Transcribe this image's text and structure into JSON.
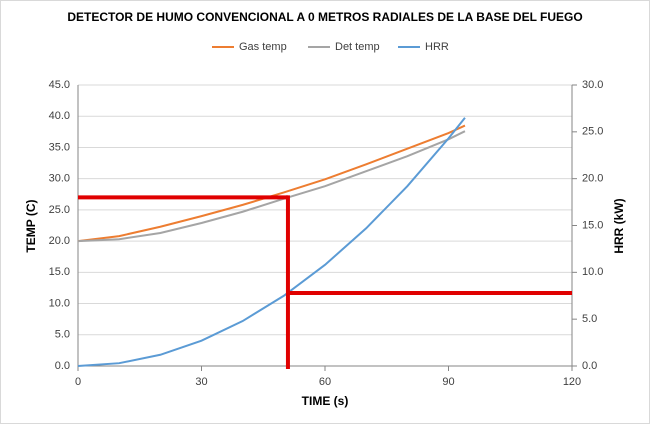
{
  "chart_data": {
    "type": "line",
    "title": "DETECTOR DE HUMO CONVENCIONAL A 0 METROS RADIALES DE LA BASE DEL FUEGO",
    "x_label": "TIME (s)",
    "y_label": "TEMP (C)",
    "y2_label": "HRR (kW)",
    "x": [
      0,
      10,
      20,
      30,
      40,
      50,
      60,
      70,
      80,
      90,
      94
    ],
    "series": [
      {
        "name": "Gas temp",
        "color": "#ed7d31",
        "values": [
          20,
          20.8,
          22.3,
          24.0,
          25.8,
          27.8,
          29.9,
          32.3,
          34.8,
          37.3,
          38.5
        ]
      },
      {
        "name": "Det temp",
        "color": "#a5a5a5",
        "values": [
          20,
          20.3,
          21.3,
          22.9,
          24.7,
          26.8,
          28.8,
          31.2,
          33.6,
          36.3,
          37.6
        ]
      },
      {
        "name": "HRR",
        "color": "#5b9bd5",
        "axis": "y2",
        "values": [
          0,
          0.3,
          1.2,
          2.7,
          4.8,
          7.5,
          10.8,
          14.7,
          19.2,
          24.3,
          26.5
        ]
      }
    ],
    "xlim": [
      0,
      120
    ],
    "xticks": [
      0,
      30,
      60,
      90,
      120
    ],
    "ylim": [
      0,
      45
    ],
    "yticks": [
      {
        "value": 0,
        "label": "0.0"
      },
      {
        "value": 5,
        "label": "5.0"
      },
      {
        "value": 10,
        "label": "10.0"
      },
      {
        "value": 15,
        "label": "15.0"
      },
      {
        "value": 20,
        "label": "20.0"
      },
      {
        "value": 25,
        "label": "25.0"
      },
      {
        "value": 30,
        "label": "30.0"
      },
      {
        "value": 35,
        "label": "35.0"
      },
      {
        "value": 40,
        "label": "40.0"
      },
      {
        "value": 45,
        "label": "45.0"
      }
    ],
    "y2lim": [
      0,
      30
    ],
    "y2ticks": [
      {
        "value": 0,
        "label": "0.0"
      },
      {
        "value": 5,
        "label": "5.0"
      },
      {
        "value": 10,
        "label": "10.0"
      },
      {
        "value": 15,
        "label": "15.0"
      },
      {
        "value": 20,
        "label": "20.0"
      },
      {
        "value": 25,
        "label": "25.0"
      },
      {
        "value": 30,
        "label": "30.0"
      }
    ],
    "grid": true,
    "legend": "top",
    "threshold": {
      "x": 51,
      "y": 27,
      "y2": 7.8,
      "color": "#e00000"
    }
  }
}
